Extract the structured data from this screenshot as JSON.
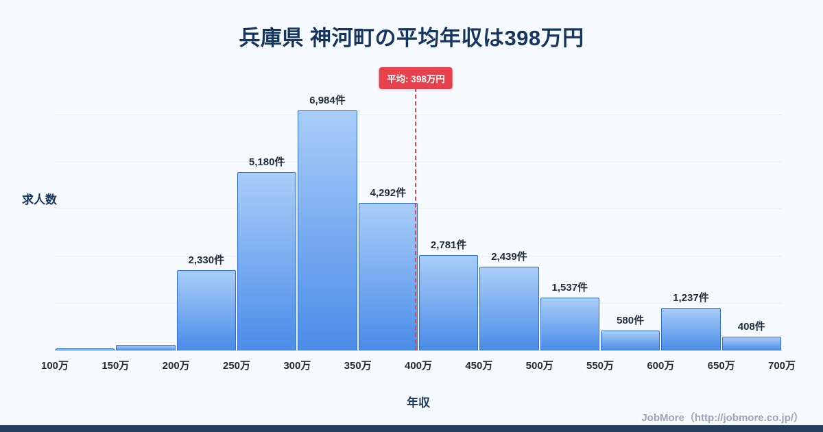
{
  "page": {
    "title": "兵庫県 神河町の平均年収は398万円",
    "footer_credit": "JobMore（http://jobmore.co.jp/）"
  },
  "chart_data": {
    "type": "bar",
    "title": "兵庫県 神河町の平均年収は398万円",
    "xlabel": "年収",
    "ylabel": "求人数",
    "unit": "件",
    "grid": "horizontal",
    "legend": "none",
    "x_range_man_yen": [
      100,
      700
    ],
    "ylim": [
      0,
      8200
    ],
    "x_tick_labels": [
      "100万",
      "150万",
      "200万",
      "250万",
      "300万",
      "350万",
      "400万",
      "450万",
      "500万",
      "550万",
      "600万",
      "650万",
      "700万"
    ],
    "bars": [
      {
        "range_start": "100万",
        "range_end": "150万",
        "value": 60,
        "label": ""
      },
      {
        "range_start": "150万",
        "range_end": "200万",
        "value": 150,
        "label": ""
      },
      {
        "range_start": "200万",
        "range_end": "250万",
        "value": 2330,
        "label": "2,330件"
      },
      {
        "range_start": "250万",
        "range_end": "300万",
        "value": 5180,
        "label": "5,180件"
      },
      {
        "range_start": "300万",
        "range_end": "350万",
        "value": 6984,
        "label": "6,984件"
      },
      {
        "range_start": "350万",
        "range_end": "400万",
        "value": 4292,
        "label": "4,292件"
      },
      {
        "range_start": "400万",
        "range_end": "450万",
        "value": 2781,
        "label": "2,781件"
      },
      {
        "range_start": "450万",
        "range_end": "500万",
        "value": 2439,
        "label": "2,439件"
      },
      {
        "range_start": "500万",
        "range_end": "550万",
        "value": 1537,
        "label": "1,537件"
      },
      {
        "range_start": "550万",
        "range_end": "600万",
        "value": 580,
        "label": "580件"
      },
      {
        "range_start": "600万",
        "range_end": "650万",
        "value": 1237,
        "label": "1,237件"
      },
      {
        "range_start": "650万",
        "range_end": "700万",
        "value": 408,
        "label": "408件"
      }
    ],
    "average_marker": {
      "label": "平均: 398万円",
      "value_man_yen": 398
    },
    "colors": {
      "bar_fill_top": "#a9cdf8",
      "bar_fill_bottom": "#4a8ce8",
      "bar_border": "#2f6fd0",
      "average_red": "#e8414e",
      "title_navy": "#16355e",
      "grid": "#e6edf7",
      "background": "#f7faff",
      "footer_bar": "#27405f",
      "footer_text": "#9aa6b5"
    }
  }
}
